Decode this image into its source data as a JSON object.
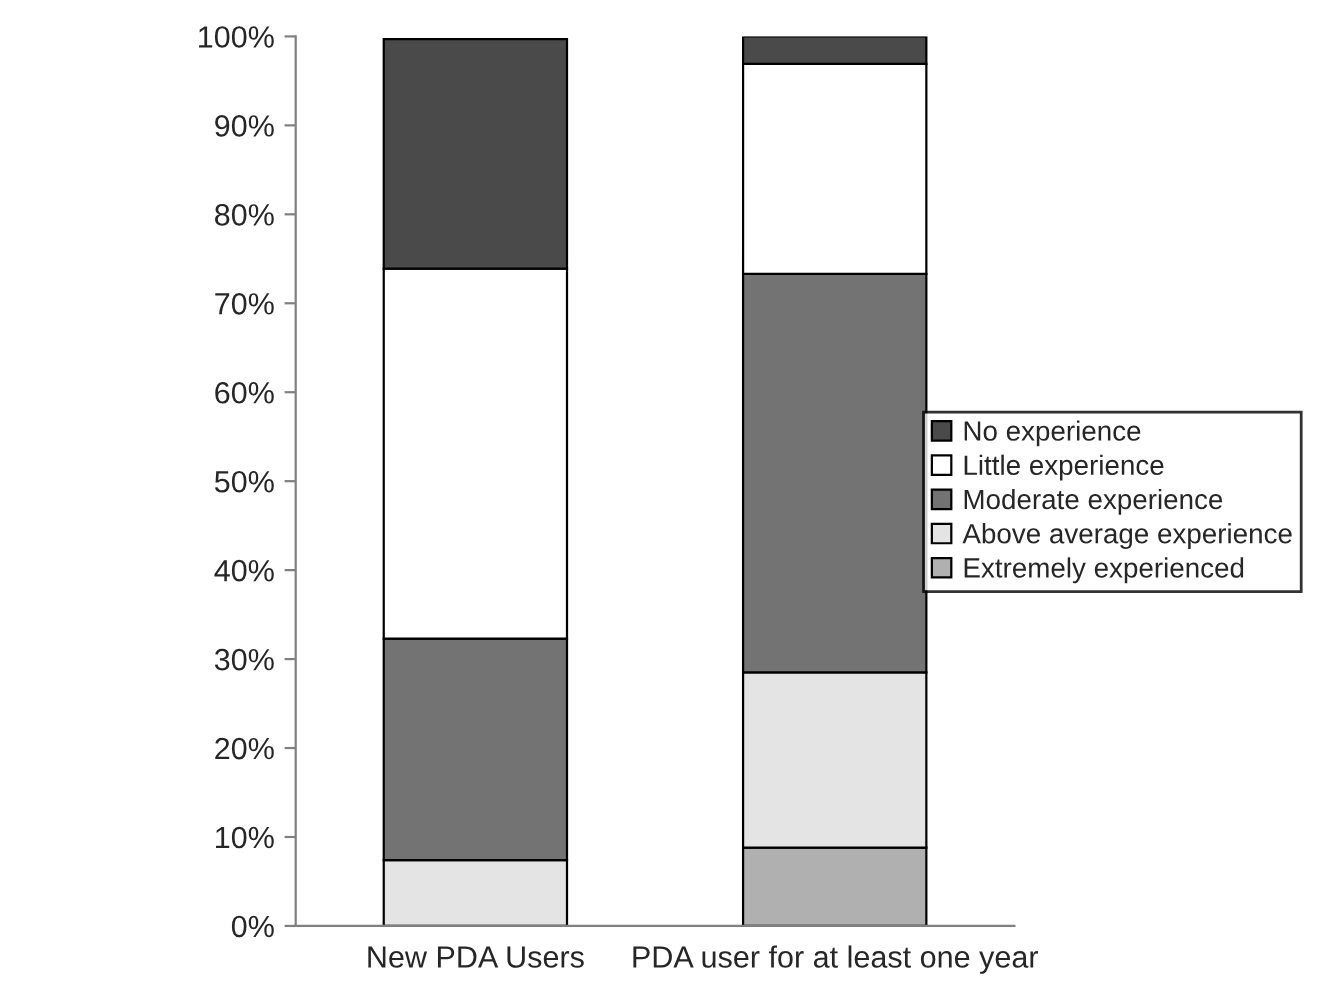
{
  "chart_data": {
    "type": "bar",
    "stacked": true,
    "categories": [
      "New PDA Users",
      "PDA user for at least one year"
    ],
    "series": [
      {
        "name": "Extremely experienced",
        "color": "#b0b0b0",
        "values": [
          null,
          8.8
        ]
      },
      {
        "name": "Above average experience",
        "color": "#e4e4e4",
        "values": [
          7.4,
          19.7
        ]
      },
      {
        "name": "Moderate experience",
        "color": "#737373",
        "values": [
          24.9,
          44.8
        ]
      },
      {
        "name": "Little experience",
        "color": "#ffffff",
        "values": [
          41.6,
          23.6
        ]
      },
      {
        "name": "No experience",
        "color": "#4a4a4a",
        "values": [
          25.8,
          3.1
        ]
      }
    ],
    "ylim": [
      0,
      100
    ],
    "yticks": [
      {
        "value": 0,
        "label": "0%"
      },
      {
        "value": 10,
        "label": "10%"
      },
      {
        "value": 20,
        "label": "20%"
      },
      {
        "value": 30,
        "label": "30%"
      },
      {
        "value": 40,
        "label": "40%"
      },
      {
        "value": 50,
        "label": "50%"
      },
      {
        "value": 60,
        "label": "60%"
      },
      {
        "value": 70,
        "label": "70%"
      },
      {
        "value": 80,
        "label": "80%"
      },
      {
        "value": 90,
        "label": "90%"
      },
      {
        "value": 100,
        "label": "100%"
      }
    ],
    "grid": false,
    "legend": "right"
  }
}
